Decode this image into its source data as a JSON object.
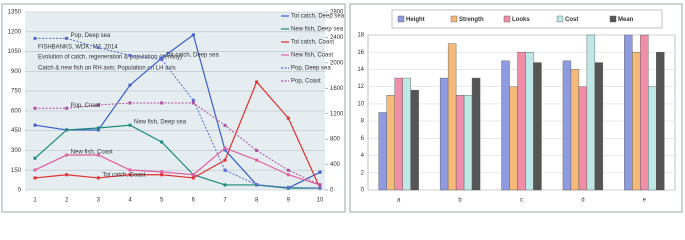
{
  "chart_data": [
    {
      "type": "line",
      "title": "FISHBANKS, WDK, M2, 2014",
      "subtitle": "Evolution of catch, regeneration & population (density)",
      "note": "Catch & new fish on RH axis; Population on LH axis",
      "categories": [
        "1",
        "2",
        "3",
        "4",
        "5",
        "6",
        "7",
        "8",
        "9",
        "10"
      ],
      "ylim": [
        0,
        1350
      ],
      "yticks": [
        0,
        150,
        300,
        450,
        600,
        750,
        900,
        1050,
        1200,
        1350
      ],
      "y2lim": [
        0,
        2800
      ],
      "y2ticks": [
        0,
        400,
        800,
        1200,
        1600,
        2000,
        2400,
        2800
      ],
      "grid": true,
      "legend": "right",
      "series": [
        {
          "name": "Tot catch, Deep sea",
          "color": "#3a5fcd",
          "axis": "y2",
          "values": [
            1020,
            945,
            945,
            1650,
            2075,
            2440,
            630,
            80,
            30,
            280
          ]
        },
        {
          "name": "New fish, Deep sea",
          "color": "#1a8a7a",
          "axis": "y2",
          "values": [
            500,
            945,
            975,
            1020,
            755,
            240,
            80,
            80,
            30,
            30
          ]
        },
        {
          "name": "Tot catch, Coast",
          "color": "#e03030",
          "axis": "y2",
          "values": [
            190,
            240,
            190,
            240,
            240,
            190,
            470,
            1700,
            1130,
            30
          ]
        },
        {
          "name": "New fish, Coast",
          "color": "#e060a0",
          "axis": "y2",
          "values": [
            315,
            550,
            550,
            315,
            285,
            240,
            660,
            470,
            240,
            80
          ]
        },
        {
          "name": "Pop, Deep sea",
          "color": "#5a6ad0",
          "dashed": true,
          "values": [
            1150,
            1150,
            1080,
            1020,
            990,
            680,
            150,
            40,
            20,
            15
          ]
        },
        {
          "name": "Pop, Coast",
          "color": "#b050a0",
          "dashed": true,
          "values": [
            620,
            620,
            645,
            660,
            660,
            660,
            490,
            300,
            150,
            40
          ]
        }
      ]
    },
    {
      "type": "bar",
      "categories": [
        "a",
        "b",
        "c",
        "d",
        "e"
      ],
      "ylim": [
        0,
        18
      ],
      "yticks": [
        0,
        2,
        4,
        6,
        8,
        10,
        12,
        14,
        16,
        18
      ],
      "grid": true,
      "legend": "top",
      "series": [
        {
          "name": "Height",
          "color": "#8e9be0",
          "values": [
            9,
            13,
            15,
            15,
            18
          ]
        },
        {
          "name": "Strength",
          "color": "#f5b97a",
          "values": [
            11,
            17,
            12,
            14,
            16
          ]
        },
        {
          "name": "Looks",
          "color": "#f08da7",
          "values": [
            13,
            11,
            16,
            12,
            18
          ]
        },
        {
          "name": "Cost",
          "color": "#bde8e6",
          "values": [
            13,
            11,
            16,
            18,
            12
          ]
        },
        {
          "name": "Mean",
          "color": "#555555",
          "values": [
            11.6,
            13,
            14.8,
            14.8,
            16
          ]
        }
      ]
    }
  ]
}
